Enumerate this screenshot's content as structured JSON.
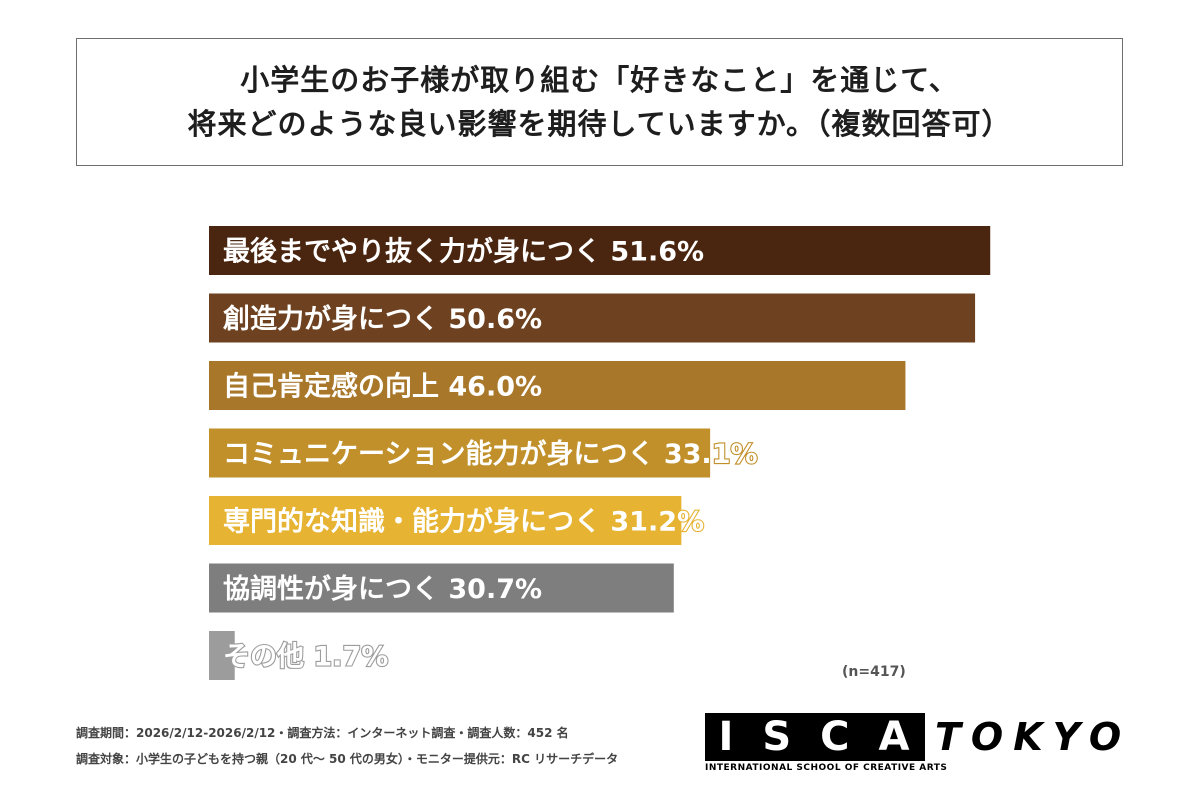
{
  "title": {
    "line1": "小学生のお子様が取り組む「好きなこと」を通じて、",
    "line2": "将来どのような良い影響を期待していますか。（複数回答可）"
  },
  "chart_data": {
    "type": "bar",
    "orientation": "horizontal",
    "categories": [
      "最後までやり抜く力が身につく",
      "創造力が身につく",
      "自己肯定感の向上",
      "コミュニケーション能力が身につく",
      "専門的な知識・能力が身につく",
      "協調性が身につく",
      "その他"
    ],
    "values": [
      51.6,
      50.6,
      46.0,
      33.1,
      31.2,
      30.7,
      1.7
    ],
    "value_labels": [
      "51.6%",
      "50.6%",
      "46.0%",
      "33.1%",
      "31.2%",
      "30.7%",
      "1.7%"
    ],
    "colors": [
      "#4a2610",
      "#6e4220",
      "#a8772a",
      "#c1902a",
      "#e6b332",
      "#7e7e7e",
      "#9c9c9c"
    ],
    "grid": false,
    "legend": "none"
  },
  "n_label": "(n=417)",
  "footer": {
    "line1": "調査期間：2026/2/12-2026/2/12・調査方法：インターネット調査・調査人数：452 名",
    "line2": "調査対象：小学生の子どもを持つ親（20 代～ 50 代の男女）・モニター提供元：RC リサーチデータ"
  },
  "logo": {
    "letters": [
      "I",
      "S",
      "C",
      "A"
    ],
    "city": "TOKYO",
    "subtitle": "INTERNATIONAL SCHOOL OF CREATIVE ARTS"
  }
}
